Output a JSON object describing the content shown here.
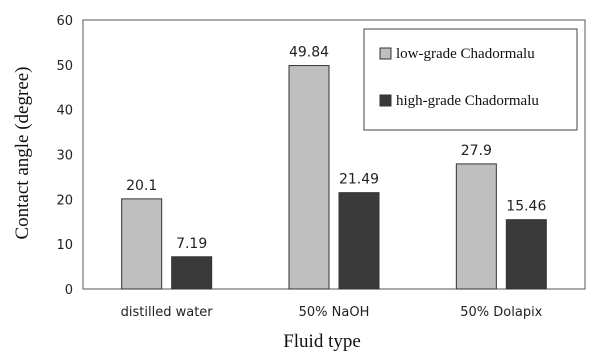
{
  "chart_data": {
    "type": "bar",
    "categories": [
      "distilled water",
      "50% NaOH",
      "50% Dolapix"
    ],
    "series": [
      {
        "name": "low-grade Chadormalu",
        "values": [
          20.1,
          49.84,
          27.9
        ],
        "labels": [
          "20.1",
          "49.84",
          "27.9"
        ],
        "color": "#bfbfbf"
      },
      {
        "name": "high-grade Chadormalu",
        "values": [
          7.19,
          21.49,
          15.46
        ],
        "labels": [
          "7.19",
          "21.49",
          "15.46"
        ],
        "color": "#3a3a3a"
      }
    ],
    "xlabel": "Fluid type",
    "ylabel": "Contact angle (degree)",
    "ylim": [
      0,
      60
    ],
    "yticks": [
      0,
      10,
      20,
      30,
      40,
      50,
      60
    ],
    "grid": false,
    "legend": "top-right"
  }
}
